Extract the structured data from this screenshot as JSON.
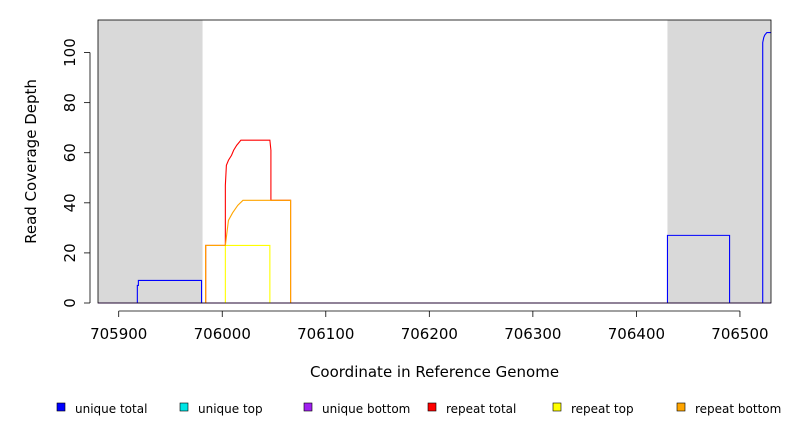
{
  "chart_data": {
    "type": "line",
    "title": "",
    "xlabel": "Coordinate in Reference Genome",
    "ylabel": "Read Coverage Depth",
    "xlim": [
      705880,
      706530
    ],
    "ylim": [
      0,
      113
    ],
    "x_ticks": [
      705900,
      706000,
      706100,
      706200,
      706300,
      706400,
      706500
    ],
    "y_ticks": [
      0,
      20,
      40,
      60,
      80,
      100
    ],
    "shaded_regions": [
      {
        "x0": 705880,
        "x1": 705981,
        "color": "#d9d9d9"
      },
      {
        "x0": 706430,
        "x1": 706530,
        "color": "#d9d9d9"
      }
    ],
    "series": [
      {
        "name": "unique total",
        "color": "#0000ff",
        "points": [
          [
            705880,
            0
          ],
          [
            705918,
            0
          ],
          [
            705918,
            7
          ],
          [
            705919,
            7
          ],
          [
            705919,
            9
          ],
          [
            705980,
            9
          ],
          [
            705980,
            0
          ],
          [
            706430,
            0
          ],
          [
            706430,
            27
          ],
          [
            706490,
            27
          ],
          [
            706490,
            0
          ],
          [
            706522,
            0
          ],
          [
            706522,
            104
          ],
          [
            706523,
            106
          ],
          [
            706524,
            107
          ],
          [
            706526,
            108
          ],
          [
            706530,
            108
          ]
        ]
      },
      {
        "name": "unique top",
        "color": "#00e5e5",
        "points": [
          [
            705880,
            0
          ],
          [
            705980,
            0
          ],
          [
            706430,
            0
          ],
          [
            706530,
            0
          ]
        ]
      },
      {
        "name": "unique bottom",
        "color": "#a020f0",
        "points": [
          [
            705880,
            0
          ],
          [
            706530,
            0
          ]
        ]
      },
      {
        "name": "repeat total",
        "color": "#ff0000",
        "points": [
          [
            705984,
            0
          ],
          [
            705984,
            23
          ],
          [
            706003,
            23
          ],
          [
            706003,
            47
          ],
          [
            706004,
            55
          ],
          [
            706006,
            57
          ],
          [
            706009,
            59
          ],
          [
            706011,
            61
          ],
          [
            706014,
            63
          ],
          [
            706016,
            64
          ],
          [
            706018,
            65
          ],
          [
            706046,
            65
          ],
          [
            706047,
            61
          ],
          [
            706047,
            41
          ],
          [
            706066,
            41
          ],
          [
            706066,
            0
          ]
        ]
      },
      {
        "name": "repeat top",
        "color": "#ffff00",
        "points": [
          [
            706003,
            0
          ],
          [
            706003,
            23
          ],
          [
            706046,
            23
          ],
          [
            706046,
            0
          ]
        ]
      },
      {
        "name": "repeat bottom",
        "color": "#ffa500",
        "points": [
          [
            705984,
            0
          ],
          [
            705984,
            23
          ],
          [
            706003,
            23
          ],
          [
            706006,
            33
          ],
          [
            706010,
            36
          ],
          [
            706015,
            39
          ],
          [
            706020,
            41
          ],
          [
            706066,
            41
          ],
          [
            706066,
            0
          ]
        ]
      }
    ],
    "legend": {
      "placement": "bottom",
      "entries": [
        {
          "label": "unique total",
          "color": "#0000ff"
        },
        {
          "label": "unique top",
          "color": "#00e5e5"
        },
        {
          "label": "unique bottom",
          "color": "#a020f0"
        },
        {
          "label": "repeat total",
          "color": "#ff0000"
        },
        {
          "label": "repeat top",
          "color": "#ffff00"
        },
        {
          "label": "repeat bottom",
          "color": "#ffa500"
        }
      ]
    }
  }
}
